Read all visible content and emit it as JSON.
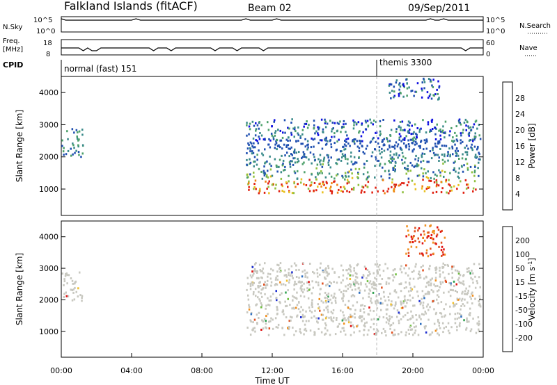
{
  "header": {
    "site": "Falkland Islands (fitACF)",
    "beam": "Beam 02",
    "date": "09/Sep/2011"
  },
  "status_panels": {
    "nsky_label": "N.Sky",
    "nsky_ticks": [
      "10^5",
      "10^0"
    ],
    "nsearch_label": "N.Search",
    "nsearch_ticks": [
      "10^5",
      "10^0"
    ],
    "freq_label_1": "Freq.",
    "freq_label_2": "[MHz]",
    "freq_ticks": [
      "18",
      "8"
    ],
    "nave_label": "Nave",
    "nave_ticks": [
      "60",
      "0"
    ],
    "cpid_label": "CPID",
    "modes": [
      {
        "name": "normal (fast) 151",
        "start_hour": 0.0
      },
      {
        "name": "themis 3300",
        "start_hour": 18.0
      }
    ]
  },
  "chart_data": [
    {
      "type": "heatmap",
      "panel": "power",
      "ylabel": "Slant Range [km]",
      "x_ticks": [
        "00:00",
        "04:00",
        "08:00",
        "12:00",
        "16:00",
        "20:00",
        "00:00"
      ],
      "x_range_hours": [
        0,
        24
      ],
      "y_ticks": [
        1000,
        2000,
        3000,
        4000
      ],
      "y_range_km": [
        180,
        4500
      ],
      "colorbar": {
        "label": "Power [dB]",
        "ticks": [
          "4",
          "8",
          "12",
          "16",
          "20",
          "24",
          "28"
        ],
        "colors": [
          "#1010e0",
          "#2050b0",
          "#3a8a8a",
          "#4da06a",
          "#90c040",
          "#e8c020",
          "#f08010",
          "#e02010"
        ]
      },
      "scatter_regions": [
        {
          "x": [
            0.0,
            1.2
          ],
          "y": [
            2000,
            2900
          ],
          "level": "medium"
        },
        {
          "x": [
            10.5,
            23.8
          ],
          "y": [
            900,
            2600
          ],
          "level": "strong"
        },
        {
          "x": [
            10.5,
            23.8
          ],
          "y": [
            2500,
            3200
          ],
          "level": "weak"
        },
        {
          "x": [
            18.5,
            21.5
          ],
          "y": [
            3800,
            4500
          ],
          "level": "weak"
        }
      ]
    },
    {
      "type": "heatmap",
      "panel": "velocity",
      "ylabel": "Slant Range [km]",
      "xlabel": "Time UT",
      "x_ticks": [
        "00:00",
        "04:00",
        "08:00",
        "12:00",
        "16:00",
        "20:00",
        "00:00"
      ],
      "x_range_hours": [
        0,
        24
      ],
      "y_ticks": [
        1000,
        2000,
        3000,
        4000
      ],
      "y_range_km": [
        180,
        4500
      ],
      "colorbar": {
        "label": "Velocity [m s^-1]",
        "ticks": [
          "200",
          "100",
          "50",
          "15",
          "-15",
          "-50",
          "-100",
          "-200"
        ],
        "colors": [
          "#2030d0",
          "#3070c0",
          "#30a050",
          "#70c040",
          "#c8c8c0",
          "#f0c030",
          "#f09020",
          "#e05020",
          "#e01010"
        ]
      },
      "scatter_regions": [
        {
          "x": [
            0.0,
            1.2
          ],
          "y": [
            2000,
            2900
          ],
          "level": "ground"
        },
        {
          "x": [
            10.5,
            23.8
          ],
          "y": [
            900,
            2600
          ],
          "level": "ground"
        },
        {
          "x": [
            10.5,
            23.8
          ],
          "y": [
            2500,
            3200
          ],
          "level": "ground"
        },
        {
          "x": [
            19.5,
            21.8
          ],
          "y": [
            3400,
            4400
          ],
          "level": "negative"
        }
      ]
    }
  ]
}
